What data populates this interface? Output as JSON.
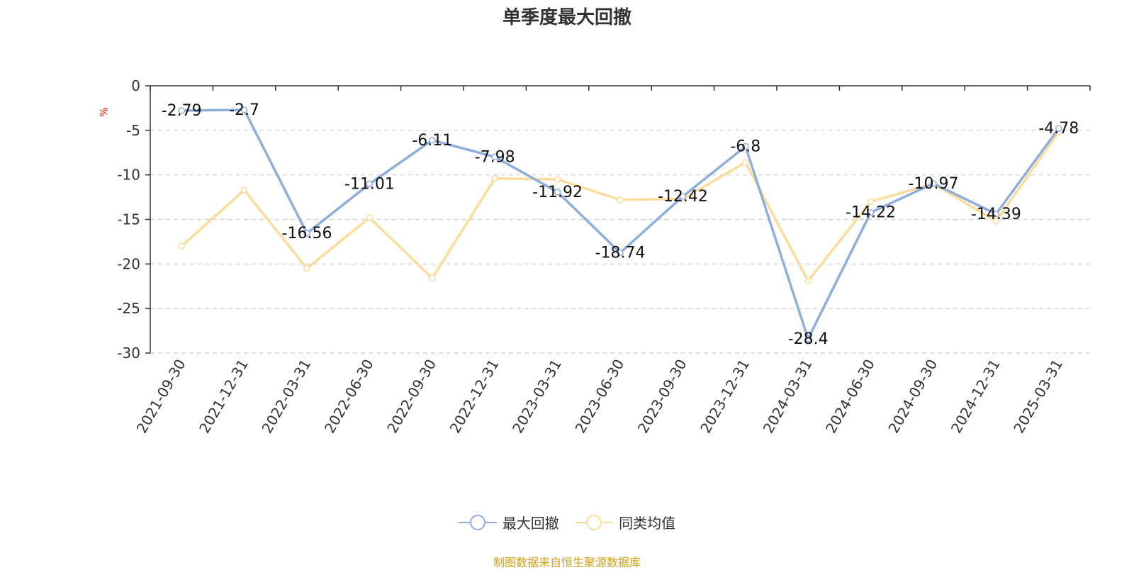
{
  "chart_data": {
    "type": "line",
    "title": "单季度最大回撤",
    "ylabel": "%",
    "ylim": [
      -30,
      0
    ],
    "yticks": [
      0,
      -5,
      -10,
      -15,
      -20,
      -25,
      -30
    ],
    "categories": [
      "2021-09-30",
      "2021-12-31",
      "2022-03-31",
      "2022-06-30",
      "2022-09-30",
      "2022-12-31",
      "2023-03-31",
      "2023-06-30",
      "2023-09-30",
      "2023-12-31",
      "2024-03-31",
      "2024-06-30",
      "2024-09-30",
      "2024-12-31",
      "2025-03-31"
    ],
    "series": [
      {
        "name": "最大回撤",
        "color": "#8eaedb",
        "values": [
          -2.79,
          -2.7,
          -16.56,
          -11.01,
          -6.11,
          -7.98,
          -11.92,
          -18.74,
          -12.42,
          -6.8,
          -28.4,
          -14.22,
          -10.97,
          -14.39,
          -4.78
        ],
        "data_labels": [
          "-2.79",
          "-2.7",
          "-16.56",
          "-11.01",
          "-6.11",
          "-7.98",
          "-11.92",
          "-18.74",
          "-12.42",
          "-6.8",
          "-28.4",
          "-14.22",
          "-10.97",
          "-14.39",
          "-4.78"
        ]
      },
      {
        "name": "同类均值",
        "color": "#fcdc9a",
        "values": [
          -18.0,
          -11.7,
          -20.5,
          -14.8,
          -21.6,
          -10.4,
          -10.5,
          -12.8,
          -12.7,
          -8.6,
          -21.9,
          -13.0,
          -11.0,
          -15.2,
          -5.2
        ]
      }
    ],
    "grid": true,
    "legend_position": "bottom"
  },
  "footer": {
    "source": "制图数据来自恒生聚源数据库"
  }
}
